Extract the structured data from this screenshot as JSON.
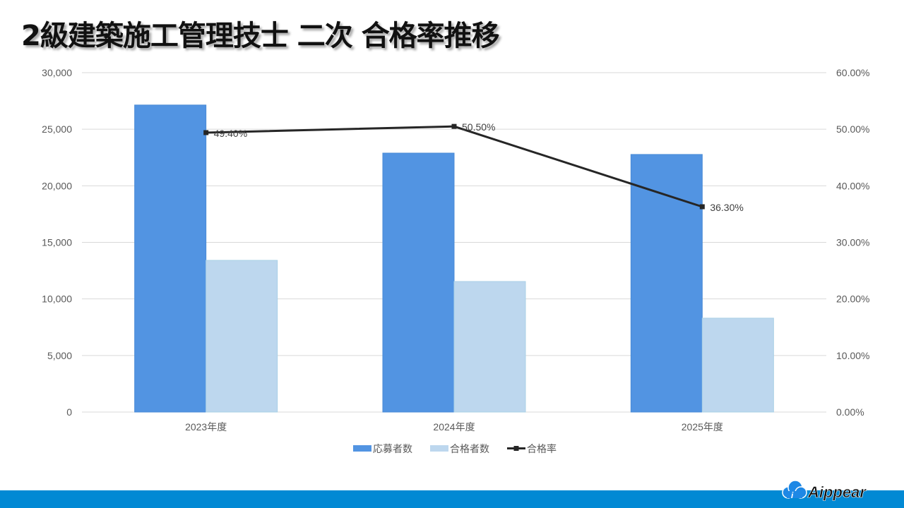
{
  "title": "2級建築施工管理技士 二次 合格率推移",
  "chart_data": {
    "type": "bar+line",
    "title": "2級建築施工管理技士 二次 合格率推移",
    "categories": [
      "2023年度",
      "2024年度",
      "2025年度"
    ],
    "series": [
      {
        "name": "応募者数",
        "type": "bar",
        "axis": "left",
        "color": "#5294E2",
        "values": [
          27140,
          22890,
          22770
        ]
      },
      {
        "name": "合格者数",
        "type": "bar",
        "axis": "left",
        "color": "#BDD7EE",
        "values": [
          13410,
          11540,
          8300
        ]
      },
      {
        "name": "合格率",
        "type": "line",
        "axis": "right",
        "color": "#262626",
        "values": [
          49.4,
          50.5,
          36.3
        ],
        "labels": [
          "49.40%",
          "50.50%",
          "36.30%"
        ]
      }
    ],
    "left_axis": {
      "ylim": [
        0,
        30000
      ],
      "ticks": [
        "0",
        "5,000",
        "10,000",
        "15,000",
        "20,000",
        "25,000",
        "30,000"
      ]
    },
    "right_axis": {
      "ylim": [
        0,
        60
      ],
      "ticks": [
        "0.00%",
        "10.00%",
        "20.00%",
        "30.00%",
        "40.00%",
        "50.00%",
        "60.00%"
      ]
    },
    "grid": true,
    "legend_position": "bottom",
    "xlabel": "",
    "ylabel": ""
  },
  "legend": [
    {
      "label": "応募者数",
      "kind": "bar-swatch",
      "color": "#5294E2"
    },
    {
      "label": "合格者数",
      "kind": "bar-swatch",
      "color": "#BDD7EE"
    },
    {
      "label": "合格率",
      "kind": "line-marker",
      "color": "#262626"
    }
  ],
  "footer": {
    "brand": "Aippear",
    "bar_color": "#0289D4"
  }
}
